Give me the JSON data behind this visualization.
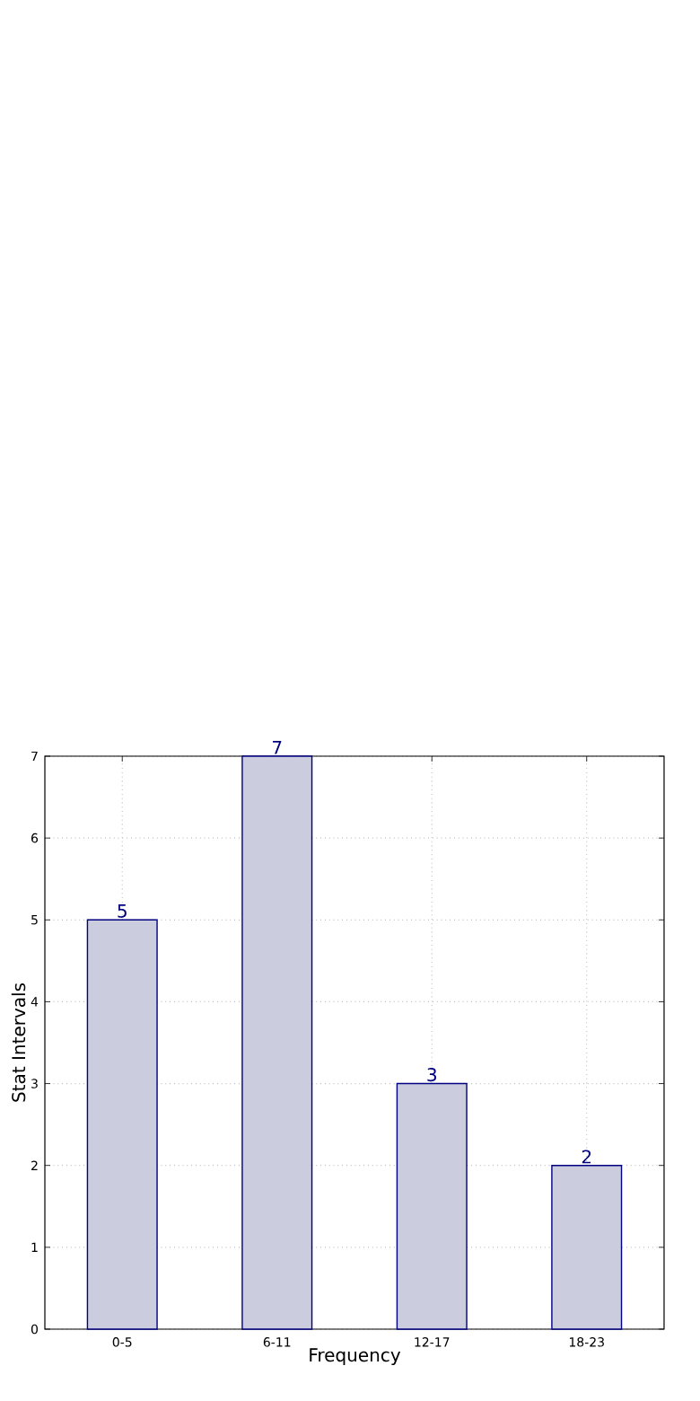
{
  "chart_data": {
    "type": "bar",
    "xlabel": "Frequency",
    "ylabel": "Stat Intervals",
    "categories": [
      "0-5",
      "6-11",
      "12-17",
      "18-23"
    ],
    "values": [
      5,
      7,
      3,
      2
    ],
    "color": "#ccccdf",
    "ylim": [
      0,
      7
    ],
    "yticks": [
      0,
      1,
      2,
      3,
      4,
      5,
      6,
      7
    ],
    "grid": true,
    "data_labels": true
  }
}
